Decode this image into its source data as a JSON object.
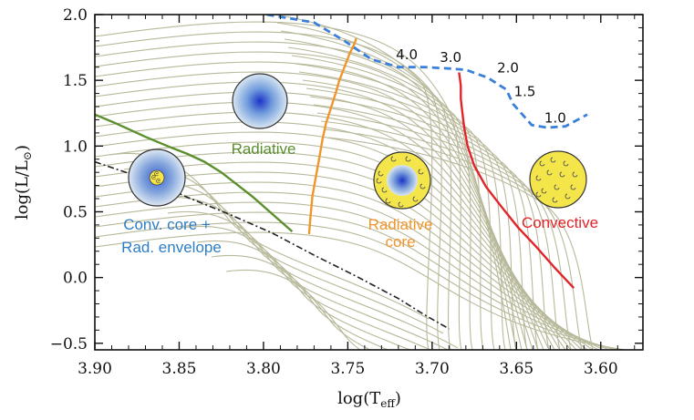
{
  "chart_data": {
    "type": "line",
    "title": "",
    "xlabel": "log(T",
    "xlabel_sub": "eff",
    "xlabel_close": ")",
    "ylabel": "log(L/L",
    "ylabel_sub": "⊙",
    "ylabel_close": ")",
    "xlim": [
      3.9,
      3.575
    ],
    "ylim": [
      -0.55,
      2.0
    ],
    "x_ticks": [
      3.9,
      3.85,
      3.8,
      3.75,
      3.7,
      3.65,
      3.6
    ],
    "x_tick_labels": [
      "3.90",
      "3.85",
      "3.80",
      "3.75",
      "3.70",
      "3.65",
      "3.60"
    ],
    "y_ticks": [
      -0.5,
      0.0,
      0.5,
      1.0,
      1.5,
      2.0
    ],
    "y_tick_labels": [
      "−0.5",
      "0.0",
      "0.5",
      "1.0",
      "1.5",
      "2.0"
    ],
    "colors": {
      "track": "#b8b89a",
      "radiative_boundary": "#5b8f2e",
      "radiative_core_boundary": "#f0952a",
      "convective_boundary": "#e2232a",
      "birthline": "#3a7fd8",
      "zams": "#222222",
      "conv_core_text": "#2f7ec3",
      "rad_core_text": "#f0952a",
      "convective_text": "#e2232a",
      "radiative_text": "#5b8f2e"
    },
    "series": [
      {
        "name": "Radiative boundary",
        "x": [
          3.9,
          3.887,
          3.87,
          3.855,
          3.845,
          3.835,
          3.825,
          3.815,
          3.806,
          3.798,
          3.79,
          3.783
        ],
        "y": [
          1.24,
          1.17,
          1.07,
          0.99,
          0.94,
          0.88,
          0.8,
          0.7,
          0.61,
          0.52,
          0.43,
          0.35
        ]
      },
      {
        "name": "Radiative core boundary",
        "x": [
          3.773,
          3.772,
          3.771,
          3.769,
          3.767,
          3.765,
          3.763,
          3.76,
          3.757,
          3.755,
          3.752,
          3.749,
          3.746,
          3.745
        ],
        "y": [
          0.33,
          0.48,
          0.62,
          0.76,
          0.9,
          1.05,
          1.17,
          1.29,
          1.41,
          1.5,
          1.6,
          1.7,
          1.78,
          1.82
        ]
      },
      {
        "name": "Convective boundary",
        "x": [
          3.684,
          3.683,
          3.683,
          3.682,
          3.681,
          3.679,
          3.675,
          3.668,
          3.659,
          3.649,
          3.638,
          3.627,
          3.616
        ],
        "y": [
          1.56,
          1.46,
          1.36,
          1.25,
          1.14,
          1.0,
          0.85,
          0.69,
          0.54,
          0.38,
          0.23,
          0.07,
          -0.08
        ]
      },
      {
        "name": "Birthline",
        "x": [
          3.798,
          3.77,
          3.752,
          3.736,
          3.72,
          3.704,
          3.69,
          3.68,
          3.667,
          3.656,
          3.652,
          3.641,
          3.632,
          3.621,
          3.608
        ],
        "y": [
          2.0,
          1.94,
          1.8,
          1.66,
          1.6,
          1.6,
          1.59,
          1.58,
          1.52,
          1.43,
          1.32,
          1.16,
          1.14,
          1.15,
          1.24
        ]
      },
      {
        "name": "ZAMS",
        "x": [
          3.9,
          3.868,
          3.845,
          3.82,
          3.795,
          3.77,
          3.745,
          3.72,
          3.705,
          3.69
        ],
        "y": [
          0.88,
          0.74,
          0.61,
          0.48,
          0.34,
          0.17,
          0.01,
          -0.16,
          -0.28,
          -0.39
        ]
      }
    ],
    "annotations": [
      {
        "text": "4.0",
        "x": 3.715,
        "y": 1.66
      },
      {
        "text": "3.0",
        "x": 3.689,
        "y": 1.64
      },
      {
        "text": "2.0",
        "x": 3.655,
        "y": 1.56
      },
      {
        "text": "1.5",
        "x": 3.645,
        "y": 1.38
      },
      {
        "text": "1.0",
        "x": 3.627,
        "y": 1.18
      }
    ],
    "region_labels": {
      "radiative": "Radiative",
      "conv_core_line1": "Conv. core +",
      "conv_core_line2": "Rad. envelope",
      "rad_core_line1": "Radiative",
      "rad_core_line2": "core",
      "convective": "Convective"
    }
  }
}
